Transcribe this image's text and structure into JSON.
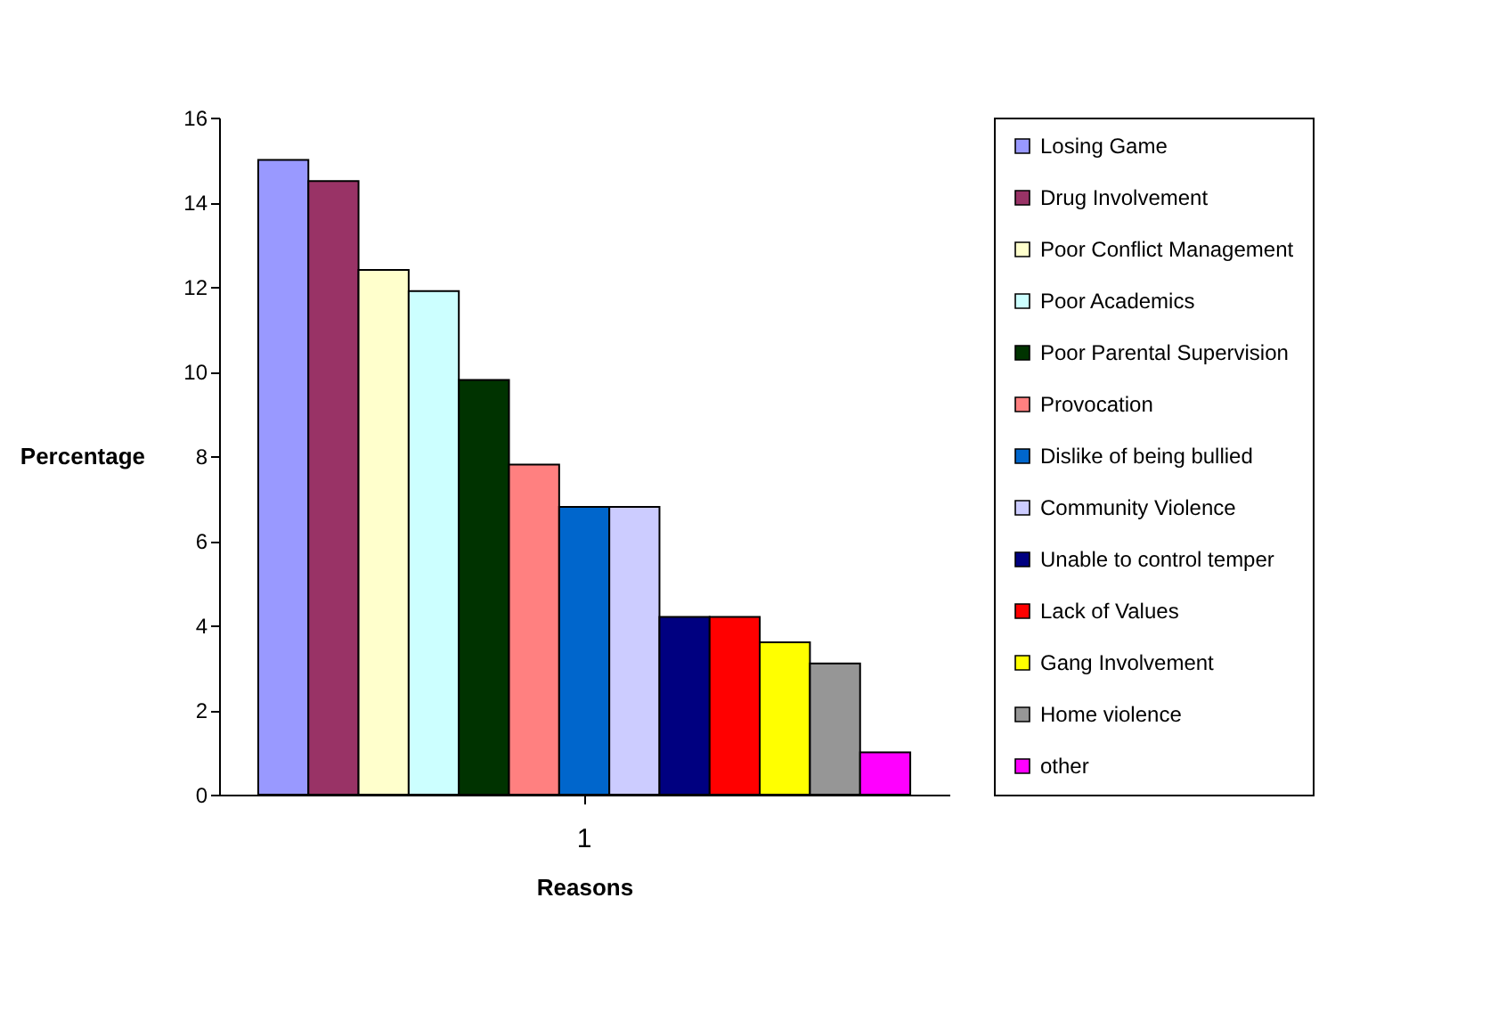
{
  "chart_data": {
    "type": "bar",
    "xlabel": "Reasons",
    "ylabel": "Percentage",
    "categories": [
      "1"
    ],
    "ylim": [
      0,
      16
    ],
    "yticks": [
      0,
      2,
      4,
      6,
      8,
      10,
      12,
      14,
      16
    ],
    "grid": false,
    "legend": "right",
    "series": [
      {
        "name": "Losing Game",
        "color": "#9999ff",
        "values": [
          15
        ]
      },
      {
        "name": "Drug Involvement",
        "color": "#993366",
        "values": [
          14.5
        ]
      },
      {
        "name": "Poor Conflict Management",
        "color": "#ffffcc",
        "values": [
          12.4
        ]
      },
      {
        "name": "Poor Academics",
        "color": "#ccffff",
        "values": [
          11.9
        ]
      },
      {
        "name": "Poor Parental Supervision",
        "color": "#003300",
        "values": [
          9.8
        ]
      },
      {
        "name": "Provocation",
        "color": "#ff8080",
        "values": [
          7.8
        ]
      },
      {
        "name": "Dislike of being bullied",
        "color": "#0066cc",
        "values": [
          6.8
        ]
      },
      {
        "name": "Community Violence",
        "color": "#ccccff",
        "values": [
          6.8
        ]
      },
      {
        "name": "Unable to control temper",
        "color": "#000080",
        "values": [
          4.2
        ]
      },
      {
        "name": "Lack of Values",
        "color": "#ff0000",
        "values": [
          4.2
        ]
      },
      {
        "name": "Gang Involvement",
        "color": "#ffff00",
        "values": [
          3.6
        ]
      },
      {
        "name": "Home violence",
        "color": "#969696",
        "values": [
          3.1
        ]
      },
      {
        "name": "other",
        "color": "#ff00ff",
        "values": [
          1.0
        ]
      }
    ]
  }
}
